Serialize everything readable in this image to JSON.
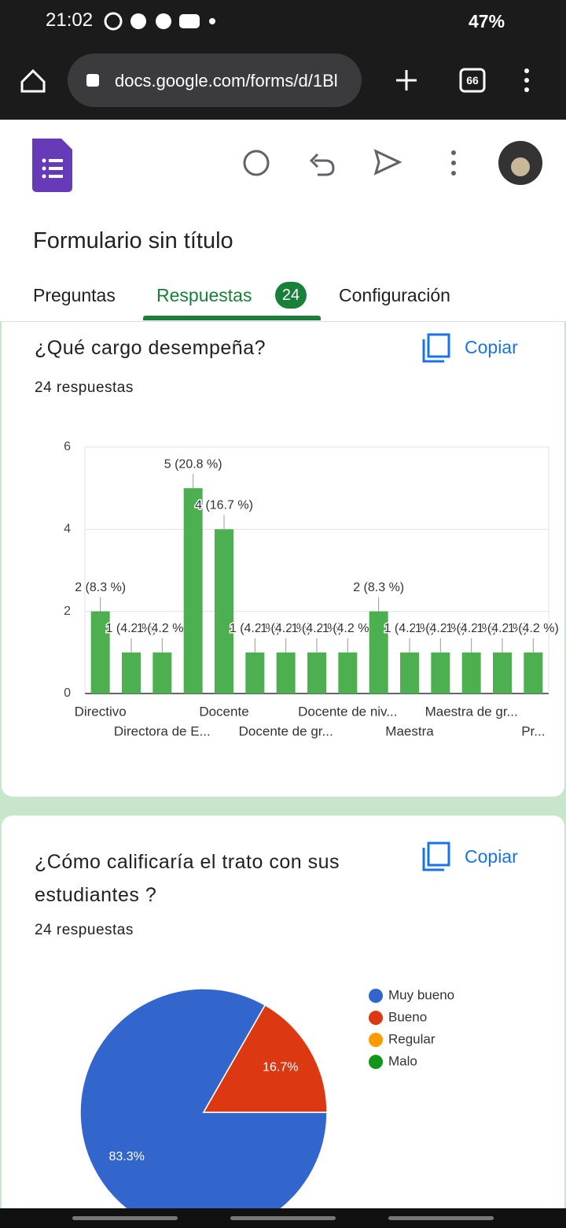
{
  "status": {
    "time": "21:02",
    "battery": "47%"
  },
  "browser": {
    "url": "docs.google.com/forms/d/1Bl",
    "tabs": "66"
  },
  "form": {
    "title": "Formulario sin título"
  },
  "tabs": {
    "questions": "Preguntas",
    "responses": "Respuestas",
    "count": "24",
    "settings": "Configuración"
  },
  "questions": [
    {
      "title": "¿Qué cargo desempeña?",
      "copy": "Copiar",
      "responses": "24 respuestas",
      "chart_data": {
        "type": "bar",
        "categories": [
          "Directivo",
          null,
          "Directora de E...",
          null,
          "Docente",
          null,
          "Docente de gr...",
          null,
          "Docente de niv...",
          null,
          "Maestra",
          null,
          "Maestra de gr...",
          null,
          "Pr..."
        ],
        "values": [
          2,
          1,
          1,
          5,
          4,
          1,
          1,
          1,
          1,
          2,
          1,
          1,
          1,
          1,
          1
        ],
        "value_labels": [
          "2 (8.3 %)",
          "1 (4.2 %)",
          "1 (4.2 %)",
          "5 (20.8 %)",
          "4 (16.7 %)",
          "1 (4.2 %)",
          "1 (4.2 %)",
          "1 (4.2 %)",
          "1 (4.2 %)",
          "2 (8.3 %)",
          "1 (4.2 %)",
          "1 (4.2 %)",
          "1 (4.2 %)",
          "1 (4.2 %)",
          "1 (4.2 %)"
        ],
        "color": "#4caf50",
        "ylim": [
          0,
          6
        ],
        "yticks": [
          0,
          2,
          4,
          6
        ],
        "grid": true
      }
    },
    {
      "title": "¿Cómo calificaría el trato con sus estudiantes ?",
      "copy": "Copiar",
      "responses": "24 respuestas",
      "chart_data": {
        "type": "pie",
        "categories": [
          "Muy bueno",
          "Bueno",
          "Regular",
          "Malo"
        ],
        "values": [
          83.3,
          16.7,
          0,
          0
        ],
        "value_labels": [
          "83.3%",
          "16.7%",
          null,
          null
        ],
        "colors": [
          "#3366cc",
          "#dc3912",
          "#ff9900",
          "#109618"
        ],
        "legend": "right"
      }
    }
  ]
}
